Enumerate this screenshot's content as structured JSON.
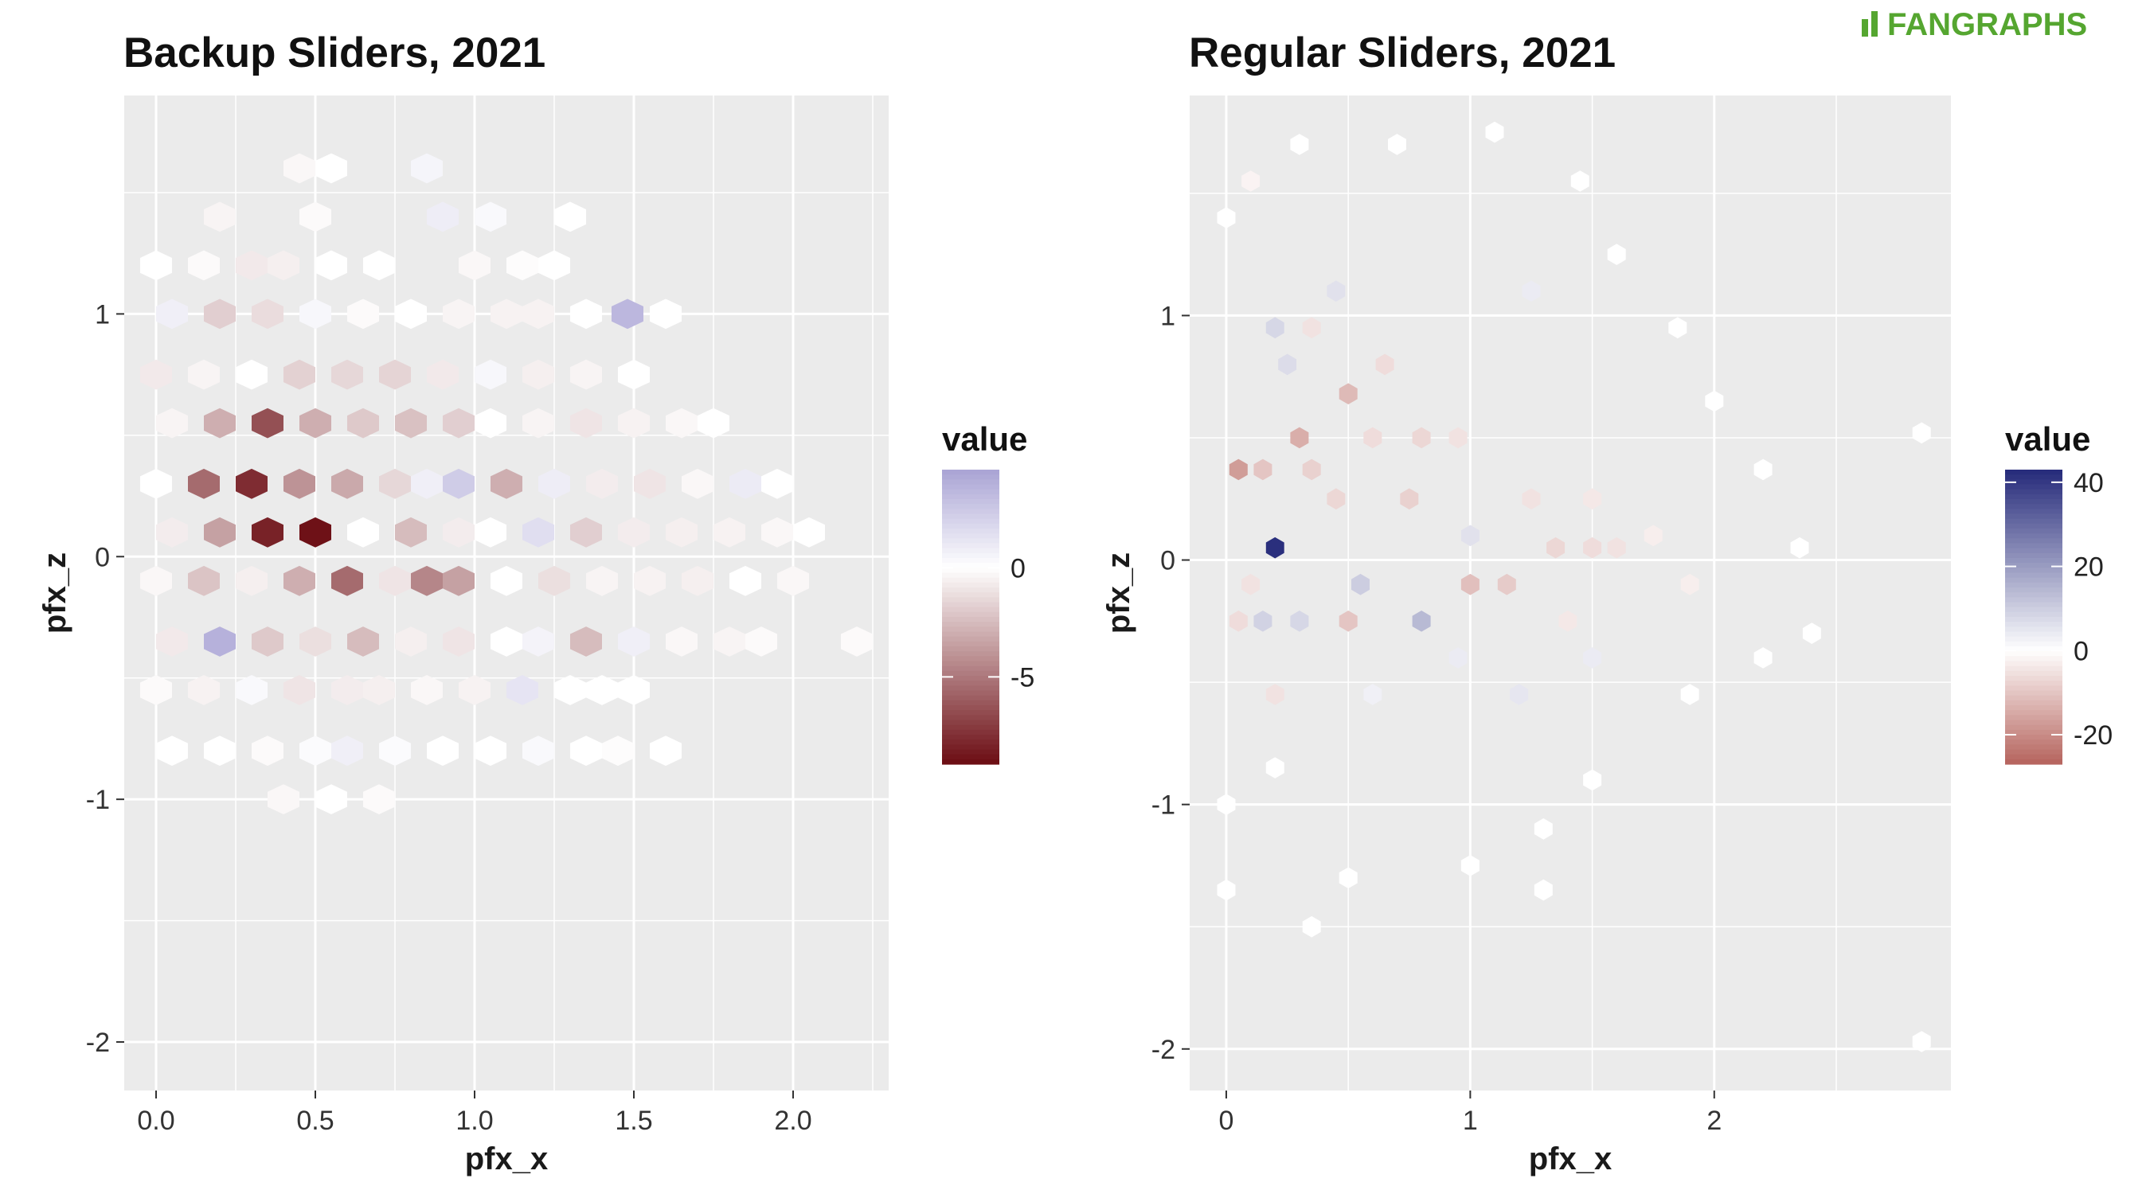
{
  "logo": {
    "text": "FANGRAPHS",
    "color": "#55a630"
  },
  "chart_data": [
    {
      "type": "heatmap",
      "subtype": "hexbin",
      "title": "Backup Sliders, 2021",
      "xlabel": "pfx_x",
      "ylabel": "pfx_z",
      "xlim": [
        -0.1,
        2.3
      ],
      "ylim": [
        -2.2,
        1.9
      ],
      "xticks": [
        0.0,
        0.5,
        1.0,
        1.5,
        2.0
      ],
      "xtick_labels": [
        "0.0",
        "0.5",
        "1.0",
        "1.5",
        "2.0"
      ],
      "yticks": [
        -2,
        -1,
        0,
        1
      ],
      "ytick_labels": [
        "-2",
        "-1",
        "0",
        "1"
      ],
      "grid": true,
      "background": "#ebebeb",
      "legend": {
        "title": "value",
        "position": "right",
        "min": -9,
        "max": 4.5,
        "tick_values": [
          0,
          -5
        ],
        "tick_labels": [
          "0",
          "-5"
        ],
        "colors": {
          "low": "#6b0c12",
          "mid": "#ffffff",
          "high": "#a9a3d4"
        }
      },
      "hex_size_x": 0.1,
      "hex_size_y": 0.1,
      "cells": [
        {
          "x": 0.55,
          "y": 1.6,
          "v": 0.0
        },
        {
          "x": 0.45,
          "y": 1.6,
          "v": -0.3
        },
        {
          "x": 0.85,
          "y": 1.6,
          "v": 0.5
        },
        {
          "x": 0.2,
          "y": 1.4,
          "v": -0.4
        },
        {
          "x": 0.5,
          "y": 1.4,
          "v": -0.2
        },
        {
          "x": 0.9,
          "y": 1.4,
          "v": 0.9
        },
        {
          "x": 1.05,
          "y": 1.4,
          "v": 0.3
        },
        {
          "x": 1.3,
          "y": 1.4,
          "v": 0.0
        },
        {
          "x": 0.0,
          "y": 1.2,
          "v": 0.0
        },
        {
          "x": 0.15,
          "y": 1.2,
          "v": -0.2
        },
        {
          "x": 0.3,
          "y": 1.2,
          "v": -0.8
        },
        {
          "x": 0.4,
          "y": 1.2,
          "v": -0.6
        },
        {
          "x": 0.55,
          "y": 1.2,
          "v": 0.0
        },
        {
          "x": 0.7,
          "y": 1.2,
          "v": 0.0
        },
        {
          "x": 1.0,
          "y": 1.2,
          "v": -0.3
        },
        {
          "x": 1.15,
          "y": 1.2,
          "v": -0.1
        },
        {
          "x": 1.25,
          "y": 1.2,
          "v": 0.0
        },
        {
          "x": 0.05,
          "y": 1.0,
          "v": 0.8
        },
        {
          "x": 0.2,
          "y": 1.0,
          "v": -1.8
        },
        {
          "x": 0.35,
          "y": 1.0,
          "v": -1.3
        },
        {
          "x": 0.5,
          "y": 1.0,
          "v": 0.4
        },
        {
          "x": 0.65,
          "y": 1.0,
          "v": -0.2
        },
        {
          "x": 0.8,
          "y": 1.0,
          "v": 0.0
        },
        {
          "x": 0.95,
          "y": 1.0,
          "v": -0.4
        },
        {
          "x": 1.1,
          "y": 1.0,
          "v": -0.5
        },
        {
          "x": 1.2,
          "y": 1.0,
          "v": -0.5
        },
        {
          "x": 1.35,
          "y": 1.0,
          "v": 0.0
        },
        {
          "x": 1.48,
          "y": 1.0,
          "v": 3.5
        },
        {
          "x": 1.6,
          "y": 1.0,
          "v": 0.0
        },
        {
          "x": 0.0,
          "y": 0.75,
          "v": -0.8
        },
        {
          "x": 0.15,
          "y": 0.75,
          "v": -0.4
        },
        {
          "x": 0.3,
          "y": 0.75,
          "v": 0.0
        },
        {
          "x": 0.45,
          "y": 0.75,
          "v": -1.7
        },
        {
          "x": 0.6,
          "y": 0.75,
          "v": -1.5
        },
        {
          "x": 0.75,
          "y": 0.75,
          "v": -1.6
        },
        {
          "x": 0.9,
          "y": 0.75,
          "v": -0.8
        },
        {
          "x": 1.05,
          "y": 0.75,
          "v": 0.4
        },
        {
          "x": 1.2,
          "y": 0.75,
          "v": -0.6
        },
        {
          "x": 1.35,
          "y": 0.75,
          "v": -0.4
        },
        {
          "x": 1.5,
          "y": 0.75,
          "v": 0.0
        },
        {
          "x": 0.05,
          "y": 0.55,
          "v": -0.4
        },
        {
          "x": 0.2,
          "y": 0.55,
          "v": -3.0
        },
        {
          "x": 0.35,
          "y": 0.55,
          "v": -6.5
        },
        {
          "x": 0.5,
          "y": 0.55,
          "v": -3.0
        },
        {
          "x": 0.65,
          "y": 0.55,
          "v": -2.0
        },
        {
          "x": 0.8,
          "y": 0.55,
          "v": -2.3
        },
        {
          "x": 0.95,
          "y": 0.55,
          "v": -1.8
        },
        {
          "x": 1.05,
          "y": 0.55,
          "v": 0.0
        },
        {
          "x": 1.2,
          "y": 0.55,
          "v": -0.4
        },
        {
          "x": 1.35,
          "y": 0.55,
          "v": -1.0
        },
        {
          "x": 1.5,
          "y": 0.55,
          "v": -0.5
        },
        {
          "x": 1.65,
          "y": 0.55,
          "v": -0.3
        },
        {
          "x": 1.75,
          "y": 0.55,
          "v": 0.0
        },
        {
          "x": 0.0,
          "y": 0.3,
          "v": 0.0
        },
        {
          "x": 0.15,
          "y": 0.3,
          "v": -5.5
        },
        {
          "x": 0.3,
          "y": 0.3,
          "v": -7.8
        },
        {
          "x": 0.45,
          "y": 0.3,
          "v": -4.0
        },
        {
          "x": 0.6,
          "y": 0.3,
          "v": -3.2
        },
        {
          "x": 0.75,
          "y": 0.3,
          "v": -1.5
        },
        {
          "x": 0.85,
          "y": 0.3,
          "v": 0.8
        },
        {
          "x": 0.95,
          "y": 0.3,
          "v": 2.5
        },
        {
          "x": 1.1,
          "y": 0.3,
          "v": -3.0
        },
        {
          "x": 1.25,
          "y": 0.3,
          "v": 0.9
        },
        {
          "x": 1.4,
          "y": 0.3,
          "v": -0.7
        },
        {
          "x": 1.55,
          "y": 0.3,
          "v": -1.0
        },
        {
          "x": 1.7,
          "y": 0.3,
          "v": -0.3
        },
        {
          "x": 1.85,
          "y": 0.3,
          "v": 1.0
        },
        {
          "x": 1.95,
          "y": 0.3,
          "v": 0.0
        },
        {
          "x": 0.05,
          "y": 0.1,
          "v": -0.7
        },
        {
          "x": 0.2,
          "y": 0.1,
          "v": -3.5
        },
        {
          "x": 0.35,
          "y": 0.1,
          "v": -8.2
        },
        {
          "x": 0.5,
          "y": 0.1,
          "v": -8.8
        },
        {
          "x": 0.65,
          "y": 0.1,
          "v": 0.0
        },
        {
          "x": 0.8,
          "y": 0.1,
          "v": -2.5
        },
        {
          "x": 0.95,
          "y": 0.1,
          "v": -0.7
        },
        {
          "x": 1.05,
          "y": 0.1,
          "v": 0.0
        },
        {
          "x": 1.2,
          "y": 0.1,
          "v": 1.6
        },
        {
          "x": 1.35,
          "y": 0.1,
          "v": -1.8
        },
        {
          "x": 1.5,
          "y": 0.1,
          "v": -0.7
        },
        {
          "x": 1.65,
          "y": 0.1,
          "v": -0.6
        },
        {
          "x": 1.8,
          "y": 0.1,
          "v": -0.5
        },
        {
          "x": 1.95,
          "y": 0.1,
          "v": -0.3
        },
        {
          "x": 2.05,
          "y": 0.1,
          "v": 0.0
        },
        {
          "x": 0.0,
          "y": -0.1,
          "v": -0.3
        },
        {
          "x": 0.15,
          "y": -0.1,
          "v": -2.2
        },
        {
          "x": 0.3,
          "y": -0.1,
          "v": -0.6
        },
        {
          "x": 0.45,
          "y": -0.1,
          "v": -3.0
        },
        {
          "x": 0.6,
          "y": -0.1,
          "v": -5.5
        },
        {
          "x": 0.75,
          "y": -0.1,
          "v": -1.0
        },
        {
          "x": 0.85,
          "y": -0.1,
          "v": -4.5
        },
        {
          "x": 0.95,
          "y": -0.1,
          "v": -3.5
        },
        {
          "x": 1.1,
          "y": -0.1,
          "v": 0.0
        },
        {
          "x": 1.25,
          "y": -0.1,
          "v": -1.2
        },
        {
          "x": 1.4,
          "y": -0.1,
          "v": -0.4
        },
        {
          "x": 1.55,
          "y": -0.1,
          "v": -0.5
        },
        {
          "x": 1.7,
          "y": -0.1,
          "v": -0.6
        },
        {
          "x": 1.85,
          "y": -0.1,
          "v": 0.0
        },
        {
          "x": 2.0,
          "y": -0.1,
          "v": -0.3
        },
        {
          "x": 0.05,
          "y": -0.35,
          "v": -0.8
        },
        {
          "x": 0.2,
          "y": -0.35,
          "v": 3.8
        },
        {
          "x": 0.35,
          "y": -0.35,
          "v": -2.0
        },
        {
          "x": 0.5,
          "y": -0.35,
          "v": -1.2
        },
        {
          "x": 0.65,
          "y": -0.35,
          "v": -2.5
        },
        {
          "x": 0.8,
          "y": -0.35,
          "v": -0.6
        },
        {
          "x": 0.95,
          "y": -0.35,
          "v": -1.0
        },
        {
          "x": 1.1,
          "y": -0.35,
          "v": 0.0
        },
        {
          "x": 1.2,
          "y": -0.35,
          "v": 0.6
        },
        {
          "x": 1.35,
          "y": -0.35,
          "v": -2.5
        },
        {
          "x": 1.5,
          "y": -0.35,
          "v": 0.8
        },
        {
          "x": 1.65,
          "y": -0.35,
          "v": -0.3
        },
        {
          "x": 1.8,
          "y": -0.35,
          "v": -0.4
        },
        {
          "x": 1.9,
          "y": -0.35,
          "v": -0.2
        },
        {
          "x": 2.2,
          "y": -0.35,
          "v": -0.2
        },
        {
          "x": 0.0,
          "y": -0.55,
          "v": -0.2
        },
        {
          "x": 0.15,
          "y": -0.55,
          "v": -0.5
        },
        {
          "x": 0.3,
          "y": -0.55,
          "v": 0.3
        },
        {
          "x": 0.45,
          "y": -0.55,
          "v": -1.0
        },
        {
          "x": 0.6,
          "y": -0.55,
          "v": -0.7
        },
        {
          "x": 0.7,
          "y": -0.55,
          "v": -0.6
        },
        {
          "x": 0.85,
          "y": -0.55,
          "v": -0.3
        },
        {
          "x": 1.0,
          "y": -0.55,
          "v": -0.5
        },
        {
          "x": 1.15,
          "y": -0.55,
          "v": 1.3
        },
        {
          "x": 1.3,
          "y": -0.55,
          "v": 0.0
        },
        {
          "x": 1.4,
          "y": -0.55,
          "v": 0.0
        },
        {
          "x": 1.5,
          "y": -0.55,
          "v": 0.0
        },
        {
          "x": 0.05,
          "y": -0.8,
          "v": 0.0
        },
        {
          "x": 0.2,
          "y": -0.8,
          "v": 0.0
        },
        {
          "x": 0.35,
          "y": -0.8,
          "v": -0.2
        },
        {
          "x": 0.5,
          "y": -0.8,
          "v": 0.2
        },
        {
          "x": 0.6,
          "y": -0.8,
          "v": 0.8
        },
        {
          "x": 0.75,
          "y": -0.8,
          "v": 0.2
        },
        {
          "x": 0.9,
          "y": -0.8,
          "v": 0.0
        },
        {
          "x": 1.05,
          "y": -0.8,
          "v": 0.0
        },
        {
          "x": 1.2,
          "y": -0.8,
          "v": 0.3
        },
        {
          "x": 1.35,
          "y": -0.8,
          "v": 0.0
        },
        {
          "x": 1.45,
          "y": -0.8,
          "v": -0.1
        },
        {
          "x": 1.6,
          "y": -0.8,
          "v": 0.0
        },
        {
          "x": 0.4,
          "y": -1.0,
          "v": -0.3
        },
        {
          "x": 0.55,
          "y": -1.0,
          "v": 0.0
        },
        {
          "x": 0.7,
          "y": -1.0,
          "v": -0.2
        }
      ]
    },
    {
      "type": "heatmap",
      "subtype": "hexbin",
      "title": "Regular Sliders, 2021",
      "xlabel": "pfx_x",
      "ylabel": "pfx_z",
      "xlim": [
        -0.15,
        2.97
      ],
      "ylim": [
        -2.17,
        1.9
      ],
      "xticks": [
        0,
        1,
        2
      ],
      "xtick_labels": [
        "0",
        "1",
        "2"
      ],
      "yticks": [
        -2,
        -1,
        0,
        1
      ],
      "ytick_labels": [
        "-2",
        "-1",
        "0",
        "1"
      ],
      "grid": true,
      "background": "#ebebeb",
      "legend": {
        "title": "value",
        "position": "right",
        "min": -27,
        "max": 43,
        "tick_values": [
          40,
          20,
          0,
          -20
        ],
        "tick_labels": [
          "40",
          "20",
          "0",
          "-20"
        ],
        "colors": {
          "low": "#b5635c",
          "mid": "#ffffff",
          "high": "#252a7a"
        }
      },
      "hex_size_x": 0.075,
      "hex_size_y": 0.07,
      "cells": [
        {
          "x": 0.2,
          "y": 0.05,
          "v": 42
        },
        {
          "x": 0.3,
          "y": 0.5,
          "v": -14
        },
        {
          "x": 0.05,
          "y": 0.37,
          "v": -17
        },
        {
          "x": 0.5,
          "y": 0.68,
          "v": -12
        },
        {
          "x": 0.5,
          "y": -0.25,
          "v": -10
        },
        {
          "x": 0.75,
          "y": 0.25,
          "v": -8
        },
        {
          "x": 1.0,
          "y": -0.1,
          "v": -11
        },
        {
          "x": 1.15,
          "y": -0.1,
          "v": -9
        },
        {
          "x": 1.35,
          "y": 0.05,
          "v": -7
        },
        {
          "x": 1.5,
          "y": 0.05,
          "v": -6
        },
        {
          "x": 1.6,
          "y": 0.05,
          "v": -5
        },
        {
          "x": 0.8,
          "y": -0.25,
          "v": 14
        },
        {
          "x": 0.55,
          "y": -0.1,
          "v": 10
        },
        {
          "x": 0.3,
          "y": -0.25,
          "v": 8
        },
        {
          "x": 0.15,
          "y": -0.25,
          "v": 9
        },
        {
          "x": 0.2,
          "y": 0.95,
          "v": 8
        },
        {
          "x": 0.25,
          "y": 0.8,
          "v": 7
        },
        {
          "x": 0.45,
          "y": 1.1,
          "v": 6
        },
        {
          "x": 1.25,
          "y": 1.1,
          "v": 4
        },
        {
          "x": 1.0,
          "y": 0.1,
          "v": 6
        },
        {
          "x": 0.15,
          "y": 0.37,
          "v": -10
        },
        {
          "x": 0.35,
          "y": 0.37,
          "v": -8
        },
        {
          "x": 0.45,
          "y": 0.25,
          "v": -7
        },
        {
          "x": 0.6,
          "y": 0.5,
          "v": -6
        },
        {
          "x": 0.8,
          "y": 0.5,
          "v": -7
        },
        {
          "x": 0.95,
          "y": 0.5,
          "v": -5
        },
        {
          "x": 0.1,
          "y": -0.1,
          "v": -5
        },
        {
          "x": 0.05,
          "y": -0.25,
          "v": -6
        },
        {
          "x": 0.2,
          "y": -0.55,
          "v": -5
        },
        {
          "x": 0.35,
          "y": 0.95,
          "v": -5
        },
        {
          "x": 0.65,
          "y": 0.8,
          "v": -6
        },
        {
          "x": 1.25,
          "y": 0.25,
          "v": -5
        },
        {
          "x": 1.5,
          "y": 0.25,
          "v": -4
        },
        {
          "x": 1.75,
          "y": 0.1,
          "v": -3
        },
        {
          "x": 1.9,
          "y": -0.1,
          "v": -3
        },
        {
          "x": 1.4,
          "y": -0.25,
          "v": -4
        },
        {
          "x": 0.95,
          "y": -0.4,
          "v": 4
        },
        {
          "x": 1.2,
          "y": -0.55,
          "v": 5
        },
        {
          "x": 0.6,
          "y": -0.55,
          "v": 3
        },
        {
          "x": 1.5,
          "y": -0.4,
          "v": 4
        },
        {
          "x": 0.0,
          "y": 1.4,
          "v": 0
        },
        {
          "x": 0.1,
          "y": 1.55,
          "v": -2
        },
        {
          "x": 0.3,
          "y": 1.7,
          "v": 0
        },
        {
          "x": 0.7,
          "y": 1.7,
          "v": 0
        },
        {
          "x": 1.1,
          "y": 1.75,
          "v": 0
        },
        {
          "x": 1.45,
          "y": 1.55,
          "v": 0
        },
        {
          "x": 1.6,
          "y": 1.25,
          "v": 0
        },
        {
          "x": 1.85,
          "y": 0.95,
          "v": 0
        },
        {
          "x": 2.0,
          "y": 0.65,
          "v": 0
        },
        {
          "x": 2.2,
          "y": 0.37,
          "v": 0
        },
        {
          "x": 2.35,
          "y": 0.05,
          "v": 0
        },
        {
          "x": 2.4,
          "y": -0.3,
          "v": 0
        },
        {
          "x": 2.2,
          "y": -0.4,
          "v": 0
        },
        {
          "x": 1.9,
          "y": -0.55,
          "v": 0
        },
        {
          "x": 1.5,
          "y": -0.9,
          "v": 0
        },
        {
          "x": 1.3,
          "y": -1.1,
          "v": 0
        },
        {
          "x": 1.0,
          "y": -1.25,
          "v": 0
        },
        {
          "x": 0.5,
          "y": -1.3,
          "v": 0
        },
        {
          "x": 0.0,
          "y": -1.35,
          "v": 0
        },
        {
          "x": 0.35,
          "y": -1.5,
          "v": 0
        },
        {
          "x": 0.0,
          "y": -1.0,
          "v": 0
        },
        {
          "x": 0.2,
          "y": -0.85,
          "v": 0
        },
        {
          "x": 1.3,
          "y": -1.35,
          "v": 0
        },
        {
          "x": 2.85,
          "y": 0.52,
          "v": 0
        },
        {
          "x": 2.85,
          "y": -1.97,
          "v": 0
        }
      ]
    }
  ]
}
